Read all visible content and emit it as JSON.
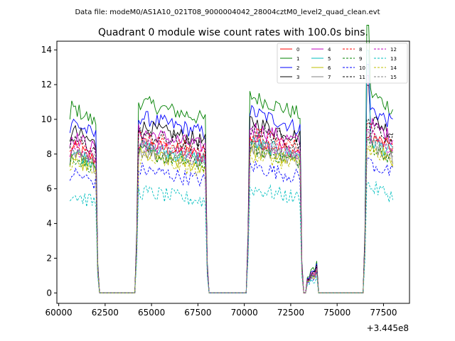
{
  "header": {
    "data_file": "Data file: modeM0/AS1A10_021T08_9000004042_28004cztM0_level2_quad_clean.evt"
  },
  "chart_data": {
    "type": "line",
    "title": "Quadrant 0 module wise count rates with 100.0s bins.",
    "xlabel": "",
    "ylabel": "",
    "x_offset_label": "+3.445e8",
    "xlim": [
      59900,
      78900
    ],
    "ylim": [
      -0.6,
      14.5
    ],
    "xticks": [
      60000,
      62500,
      65000,
      67500,
      70000,
      72500,
      75000,
      77500
    ],
    "xtick_labels": [
      "60000",
      "62500",
      "65000",
      "67500",
      "70000",
      "72500",
      "75000",
      "77500"
    ],
    "yticks": [
      0,
      2,
      4,
      6,
      8,
      10,
      12,
      14
    ],
    "ytick_labels": [
      "0",
      "2",
      "4",
      "6",
      "8",
      "10",
      "12",
      "14"
    ],
    "grid": false,
    "legend_position": "top-right",
    "segments": [
      {
        "start": 60600,
        "end": 62000
      },
      {
        "start": 64300,
        "end": 67900
      },
      {
        "start": 70300,
        "end": 73000
      },
      {
        "start": 73600,
        "end": 73800
      },
      {
        "start": 76600,
        "end": 78000
      }
    ],
    "series": [
      {
        "name": "0",
        "color": "#ff0000",
        "dash": "solid",
        "level": 8.0,
        "peak": 1.0
      },
      {
        "name": "1",
        "color": "#008000",
        "dash": "solid",
        "level": 10.2,
        "peak": 1.35
      },
      {
        "name": "2",
        "color": "#0000ff",
        "dash": "solid",
        "level": 9.4,
        "peak": 1.25
      },
      {
        "name": "3",
        "color": "#000000",
        "dash": "solid",
        "level": 8.9,
        "peak": 1.2
      },
      {
        "name": "4",
        "color": "#bf00bf",
        "dash": "solid",
        "level": 8.6,
        "peak": 1.3
      },
      {
        "name": "5",
        "color": "#00bfbf",
        "dash": "solid",
        "level": 7.8,
        "peak": 1.6
      },
      {
        "name": "6",
        "color": "#bfbf00",
        "dash": "solid",
        "level": 7.4,
        "peak": 1.0
      },
      {
        "name": "7",
        "color": "#808080",
        "dash": "solid",
        "level": 7.6,
        "peak": 1.05
      },
      {
        "name": "8",
        "color": "#ff0000",
        "dash": "dashed",
        "level": 8.3,
        "peak": 1.05
      },
      {
        "name": "9",
        "color": "#008000",
        "dash": "dashed",
        "level": 7.5,
        "peak": 1.05
      },
      {
        "name": "10",
        "color": "#0000ff",
        "dash": "dashed",
        "level": 6.6,
        "peak": 1.05
      },
      {
        "name": "11",
        "color": "#000000",
        "dash": "dashed",
        "level": 8.5,
        "peak": 1.05
      },
      {
        "name": "12",
        "color": "#bf00bf",
        "dash": "dashed",
        "level": 8.0,
        "peak": 1.05
      },
      {
        "name": "13",
        "color": "#00bfbf",
        "dash": "dashed",
        "level": 5.4,
        "peak": 1.05
      },
      {
        "name": "14",
        "color": "#bfbf00",
        "dash": "dashed",
        "level": 7.2,
        "peak": 1.05
      },
      {
        "name": "15",
        "color": "#808080",
        "dash": "dashed",
        "level": 7.9,
        "peak": 1.05
      }
    ]
  }
}
